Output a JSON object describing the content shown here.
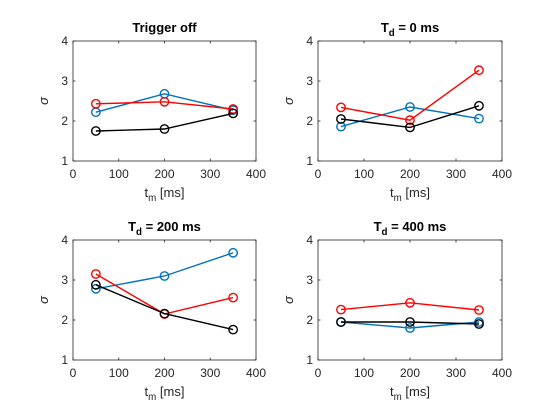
{
  "chart_data": [
    {
      "type": "line",
      "title": {
        "main": "Trigger off",
        "sub": ""
      },
      "xlabel": {
        "main": "t",
        "sub": "m",
        "rest": " [ms]"
      },
      "ylabel": "σ",
      "xlim": [
        0,
        400
      ],
      "ylim": [
        1,
        4
      ],
      "xticks": [
        0,
        100,
        200,
        300,
        400
      ],
      "yticks": [
        1,
        2,
        3,
        4
      ],
      "x": [
        50,
        200,
        350
      ],
      "series": [
        {
          "color": "#0072BD",
          "values": [
            2.22,
            2.68,
            2.27
          ]
        },
        {
          "color": "#FF0000",
          "values": [
            2.43,
            2.48,
            2.3
          ]
        },
        {
          "color": "#000000",
          "values": [
            1.75,
            1.8,
            2.19
          ]
        }
      ]
    },
    {
      "type": "line",
      "title": {
        "main": "T",
        "sub": "d",
        "rest": " = 0 ms"
      },
      "xlabel": {
        "main": "t",
        "sub": "m",
        "rest": " [ms]"
      },
      "ylabel": "σ",
      "xlim": [
        0,
        400
      ],
      "ylim": [
        1,
        4
      ],
      "xticks": [
        0,
        100,
        200,
        300,
        400
      ],
      "yticks": [
        1,
        2,
        3,
        4
      ],
      "x": [
        50,
        200,
        350
      ],
      "series": [
        {
          "color": "#0072BD",
          "values": [
            1.86,
            2.35,
            2.06
          ]
        },
        {
          "color": "#FF0000",
          "values": [
            2.34,
            2.02,
            3.27
          ]
        },
        {
          "color": "#000000",
          "values": [
            2.05,
            1.84,
            2.38
          ]
        }
      ]
    },
    {
      "type": "line",
      "title": {
        "main": "T",
        "sub": "d",
        "rest": " = 200 ms"
      },
      "xlabel": {
        "main": "t",
        "sub": "m",
        "rest": " [ms]"
      },
      "ylabel": "σ",
      "xlim": [
        0,
        400
      ],
      "ylim": [
        1,
        4
      ],
      "xticks": [
        0,
        100,
        200,
        300,
        400
      ],
      "yticks": [
        1,
        2,
        3,
        4
      ],
      "x": [
        50,
        200,
        350
      ],
      "series": [
        {
          "color": "#0072BD",
          "values": [
            2.78,
            3.1,
            3.68
          ]
        },
        {
          "color": "#FF0000",
          "values": [
            3.15,
            2.15,
            2.56
          ]
        },
        {
          "color": "#000000",
          "values": [
            2.88,
            2.16,
            1.76
          ]
        }
      ]
    },
    {
      "type": "line",
      "title": {
        "main": "T",
        "sub": "d",
        "rest": " = 400 ms"
      },
      "xlabel": {
        "main": "t",
        "sub": "m",
        "rest": " [ms]"
      },
      "ylabel": "σ",
      "xlim": [
        0,
        400
      ],
      "ylim": [
        1,
        4
      ],
      "xticks": [
        0,
        100,
        200,
        300,
        400
      ],
      "yticks": [
        1,
        2,
        3,
        4
      ],
      "x": [
        50,
        200,
        350
      ],
      "series": [
        {
          "color": "#0072BD",
          "values": [
            1.95,
            1.8,
            1.95
          ]
        },
        {
          "color": "#FF0000",
          "values": [
            2.26,
            2.43,
            2.25
          ]
        },
        {
          "color": "#000000",
          "values": [
            1.95,
            1.95,
            1.9
          ]
        }
      ]
    }
  ]
}
